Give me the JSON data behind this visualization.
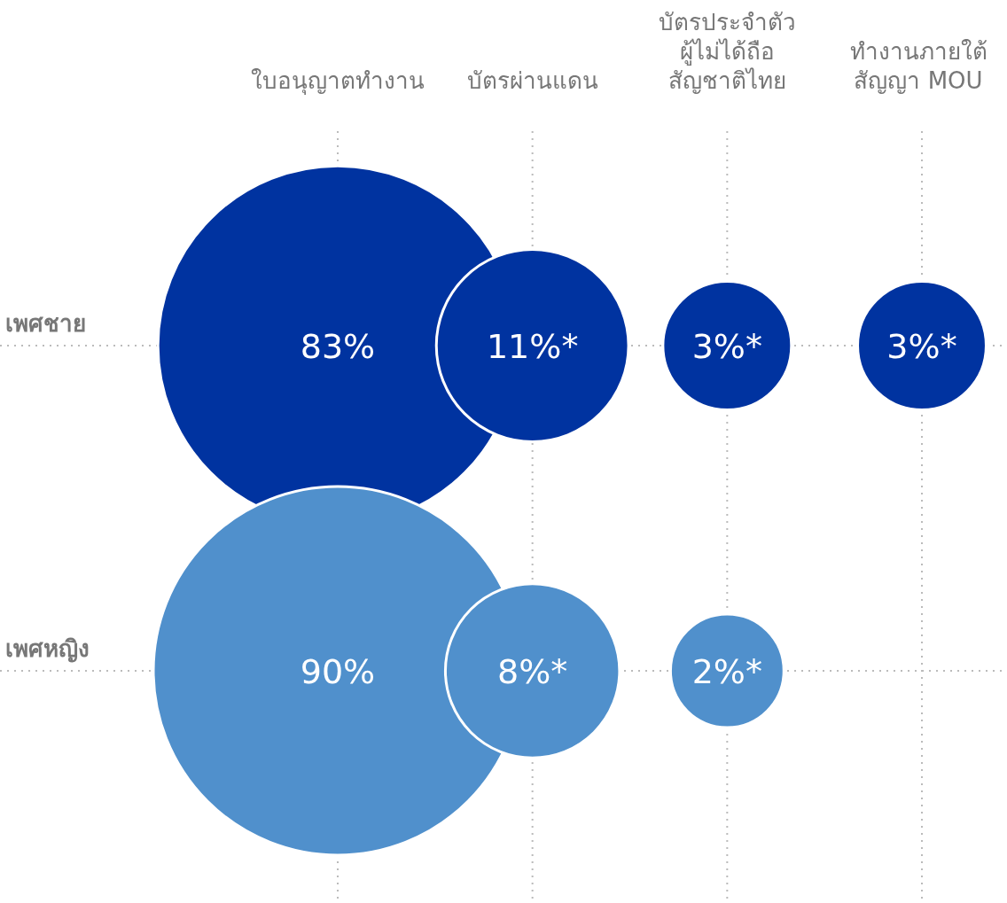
{
  "chart_data": {
    "type": "heatmap",
    "categories": [
      "ใบอนุญาตทำงาน",
      "บัตรผ่านแดน",
      "บัตรประจำตัว\nผู้ไม่ได้ถือ\nสัญชาติไทย",
      "ทำงานภายใต้\nสัญญา MOU"
    ],
    "y_categories": [
      "เพศชาย",
      "เพศหญิง"
    ],
    "cells": [
      [
        83,
        11,
        3,
        3
      ],
      [
        90,
        8,
        2,
        null
      ]
    ],
    "cell_labels": [
      [
        "83%",
        "11%*",
        "3%*",
        "3%*"
      ],
      [
        "90%",
        "8%*",
        "2%*",
        null
      ]
    ],
    "colors": [
      "#0033a0",
      "#5090cc"
    ],
    "grid": true
  }
}
